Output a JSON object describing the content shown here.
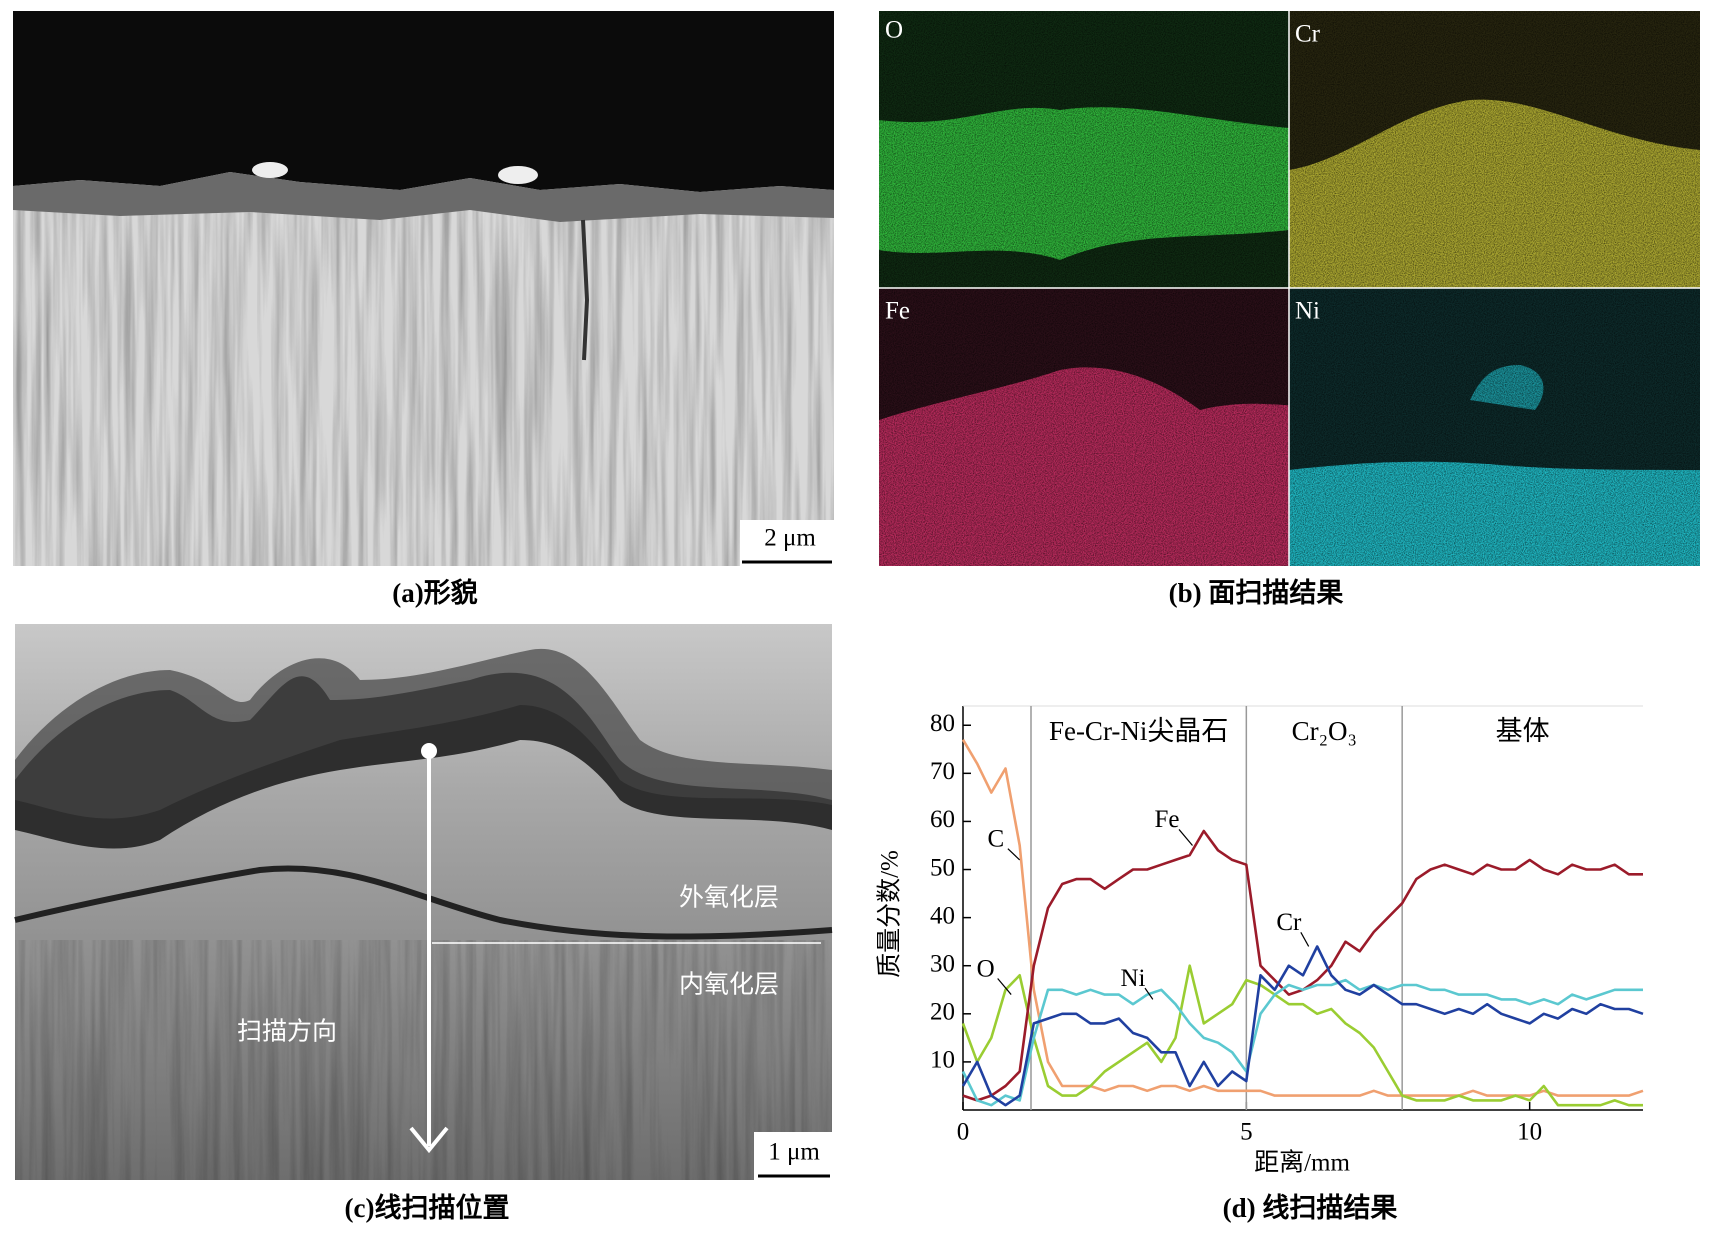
{
  "panels": [
    {
      "caption": "(a)形貌",
      "scale_bar": "2 μm"
    },
    {
      "caption": "(b) 面扫描结果",
      "maps": [
        "O",
        "Cr",
        "Fe",
        "Ni"
      ]
    },
    {
      "caption": "(c)线扫描位置",
      "labels": [
        "外氧化层",
        "内氧化层",
        "扫描方向"
      ],
      "scale_bar": "1 μm"
    }
  ],
  "chart_data": {
    "type": "line",
    "caption": "(d) 线扫描结果",
    "xlabel": "距离/mm",
    "ylabel": "质量分数/%",
    "xlim": [
      0,
      12
    ],
    "ylim": [
      0,
      84
    ],
    "xticks": [
      0,
      5,
      10
    ],
    "yticks": [
      10,
      20,
      30,
      40,
      50,
      60,
      70,
      80
    ],
    "dividers": [
      1.2,
      5,
      7.75
    ],
    "region_labels": [
      "Fe-Cr-Ni尖晶石",
      "Cr₂O₃",
      "基体"
    ],
    "x": [
      0,
      0.25,
      0.5,
      0.75,
      1,
      1.25,
      1.5,
      1.75,
      2,
      2.25,
      2.5,
      2.75,
      3,
      3.25,
      3.5,
      3.75,
      4,
      4.25,
      4.5,
      4.75,
      5,
      5.25,
      5.5,
      5.75,
      6,
      6.25,
      6.5,
      6.75,
      7,
      7.25,
      7.5,
      7.75,
      8,
      8.25,
      8.5,
      8.75,
      9,
      9.25,
      9.5,
      9.75,
      10,
      10.25,
      10.5,
      10.75,
      11,
      11.25,
      11.5,
      11.75,
      12
    ],
    "series": [
      {
        "name": "C",
        "color": "#f0a070",
        "values": [
          77,
          72,
          66,
          71,
          55,
          25,
          10,
          5,
          5,
          5,
          4,
          5,
          5,
          4,
          5,
          5,
          4,
          5,
          4,
          4,
          4,
          4,
          3,
          3,
          3,
          3,
          3,
          3,
          3,
          4,
          3,
          3,
          3,
          3,
          3,
          3,
          4,
          3,
          3,
          3,
          3,
          4,
          3,
          3,
          3,
          3,
          3,
          3,
          4
        ]
      },
      {
        "name": "O",
        "color": "#9acd32",
        "values": [
          18,
          10,
          15,
          25,
          28,
          15,
          5,
          3,
          3,
          5,
          8,
          10,
          12,
          14,
          10,
          15,
          30,
          18,
          20,
          22,
          27,
          26,
          24,
          22,
          22,
          20,
          21,
          18,
          16,
          13,
          8,
          3,
          2,
          2,
          2,
          3,
          2,
          2,
          2,
          3,
          2,
          5,
          1,
          1,
          1,
          1,
          2,
          1,
          1
        ]
      },
      {
        "name": "Fe",
        "color": "#9b1b2a",
        "values": [
          3,
          2,
          3,
          5,
          8,
          30,
          42,
          47,
          48,
          48,
          46,
          48,
          50,
          50,
          51,
          52,
          53,
          58,
          54,
          52,
          51,
          30,
          27,
          24,
          25,
          27,
          30,
          35,
          33,
          37,
          40,
          43,
          48,
          50,
          51,
          50,
          49,
          51,
          50,
          50,
          52,
          50,
          49,
          51,
          50,
          50,
          51,
          49,
          49
        ]
      },
      {
        "name": "Ni",
        "color": "#5bc8d0",
        "values": [
          8,
          2,
          1,
          3,
          2,
          15,
          25,
          25,
          24,
          25,
          24,
          24,
          22,
          24,
          25,
          22,
          18,
          15,
          14,
          12,
          8,
          20,
          24,
          26,
          25,
          26,
          26,
          27,
          25,
          26,
          25,
          26,
          26,
          25,
          25,
          24,
          24,
          24,
          23,
          23,
          22,
          23,
          22,
          24,
          23,
          24,
          25,
          25,
          25
        ]
      },
      {
        "name": "Cr",
        "color": "#2040a0",
        "values": [
          5,
          10,
          3,
          1,
          3,
          18,
          19,
          20,
          20,
          18,
          18,
          19,
          16,
          15,
          12,
          12,
          5,
          10,
          5,
          8,
          6,
          28,
          25,
          30,
          28,
          34,
          28,
          25,
          24,
          26,
          24,
          22,
          22,
          21,
          20,
          21,
          20,
          22,
          20,
          19,
          18,
          20,
          19,
          21,
          20,
          22,
          21,
          21,
          20
        ]
      }
    ]
  }
}
